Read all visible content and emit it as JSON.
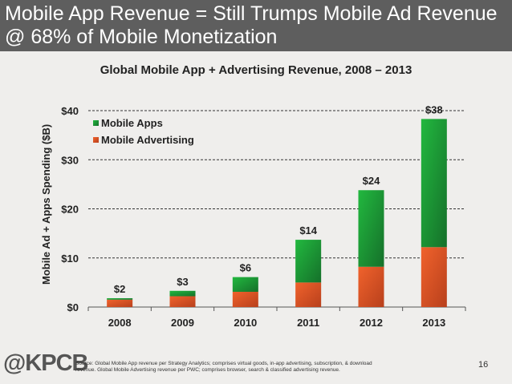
{
  "header": {
    "line1": "Mobile App Revenue = Still Trumps Mobile Ad Revenue",
    "line2": "@ 68% of Mobile Monetization"
  },
  "chart_data": {
    "type": "bar",
    "stacked": true,
    "title": "Global Mobile App + Advertising Revenue, 2008 – 2013",
    "xlabel": "",
    "ylabel": "Mobile Ad + Apps Spending ($B)",
    "ylim": [
      0,
      40
    ],
    "yticks": [
      0,
      10,
      20,
      30,
      40
    ],
    "ytick_labels": [
      "$0",
      "$10",
      "$20",
      "$30",
      "$40"
    ],
    "grid": "horizontal dashed",
    "legend": "top-left",
    "categories": [
      "2008",
      "2009",
      "2010",
      "2011",
      "2012",
      "2013"
    ],
    "series": [
      {
        "name": "Mobile Advertising",
        "color": "#e5582a",
        "values": [
          1.5,
          2.2,
          3.1,
          5.0,
          8.2,
          12.2
        ]
      },
      {
        "name": "Mobile Apps",
        "color": "#21a33a",
        "values": [
          0.3,
          1.1,
          3.0,
          8.7,
          15.6,
          26.1
        ]
      }
    ],
    "data_labels": [
      "$2",
      "$3",
      "$6",
      "$14",
      "$24",
      "$38"
    ]
  },
  "footer": {
    "logo": "@KPCB",
    "source": "Source: Global Mobile App revenue per Strategy Analytics; comprises virtual goods, in-app advertising, subscription, & download revenue. Global Mobile Advertising revenue per PWC; comprises browser, search & classified advertising revenue.",
    "page": "16"
  }
}
